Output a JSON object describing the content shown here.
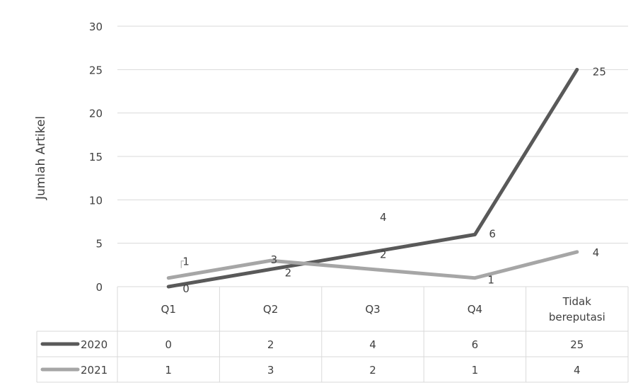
{
  "chart_data": {
    "type": "line",
    "title": "",
    "xlabel": "",
    "ylabel": "Jumlah Artikel",
    "categories": [
      "Q1",
      "Q2",
      "Q3",
      "Q4",
      "Tidak bereputasi"
    ],
    "series": [
      {
        "name": "2020",
        "values": [
          0,
          2,
          4,
          6,
          25
        ],
        "color": "#595959"
      },
      {
        "name": "2021",
        "values": [
          1,
          3,
          2,
          1,
          4
        ],
        "color": "#a6a6a6"
      }
    ],
    "ylim": [
      0,
      30
    ],
    "yticks": [
      0,
      5,
      10,
      15,
      20,
      25,
      30
    ],
    "grid": true,
    "legend": "data-table-left",
    "data_table": true,
    "data_labels": true
  }
}
